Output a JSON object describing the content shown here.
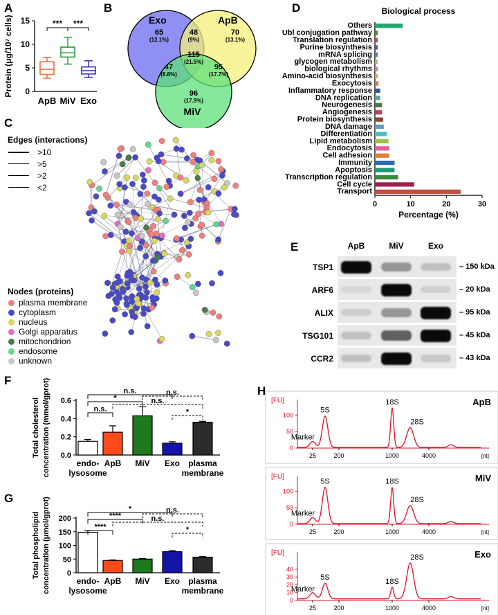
{
  "panel_labels": {
    "a": "A",
    "b": "B",
    "c": "C",
    "d": "D",
    "e": "E",
    "f": "F",
    "g": "G",
    "h": "H"
  },
  "colors": {
    "apb": "#f26b3a",
    "miv": "#2a9d3a",
    "exo": "#2f2fc0",
    "venn_exo": "#6b6bf0",
    "venn_apb": "#f6f07a",
    "venn_miv": "#5ee07a",
    "trace": "#e0102a",
    "bar_miv": "#1f7a1f",
    "bar_exo": "#1414a8",
    "bar_pm": "#2b2b2b",
    "bar_apb": "#ff4a1a"
  },
  "chart_data": [
    {
      "id": "A",
      "type": "box",
      "ylabel": "Protein (μg/10⁷ cells)",
      "ylim": [
        0,
        15
      ],
      "yticks": [
        "0",
        "5",
        "10",
        "15"
      ],
      "categories": [
        "ApB",
        "MiV",
        "Exo"
      ],
      "boxes": [
        {
          "name": "ApB",
          "min": 2.8,
          "q1": 3.6,
          "median": 4.7,
          "q3": 6.3,
          "max": 7.2
        },
        {
          "name": "MiV",
          "min": 5.8,
          "q1": 7.3,
          "median": 8.2,
          "q3": 9.4,
          "max": 11.5
        },
        {
          "name": "Exo",
          "min": 3.0,
          "q1": 3.7,
          "median": 4.4,
          "q3": 5.2,
          "max": 6.5
        }
      ],
      "significance": [
        {
          "pair": [
            "ApB",
            "MiV"
          ],
          "label": "***"
        },
        {
          "pair": [
            "MiV",
            "Exo"
          ],
          "label": "***"
        }
      ]
    },
    {
      "id": "B",
      "type": "venn",
      "sets": [
        "Exo",
        "ApB",
        "MiV"
      ],
      "regions": [
        {
          "sets": [
            "Exo"
          ],
          "count": "65",
          "pct": "(12.1%)"
        },
        {
          "sets": [
            "ApB"
          ],
          "count": "70",
          "pct": "(13.1%)"
        },
        {
          "sets": [
            "Exo",
            "ApB"
          ],
          "count": "48",
          "pct": "(9%)"
        },
        {
          "sets": [
            "Exo",
            "ApB",
            "MiV"
          ],
          "count": "115",
          "pct": "(21.5%)"
        },
        {
          "sets": [
            "Exo",
            "MiV"
          ],
          "count": "47",
          "pct": "(8.8%)"
        },
        {
          "sets": [
            "ApB",
            "MiV"
          ],
          "count": "95",
          "pct": "(17.7%)"
        },
        {
          "sets": [
            "MiV"
          ],
          "count": "96",
          "pct": "(17.9%)"
        }
      ]
    },
    {
      "id": "D",
      "type": "bar",
      "orientation": "horizontal",
      "title": "Biological process",
      "xlabel": "Percentage (%)",
      "xlim": [
        0,
        30
      ],
      "xticks": [
        "0",
        "10",
        "20",
        "30"
      ],
      "categories": [
        "Others",
        "Ubl conjugation pathway",
        "Translation regulation",
        "Purine biosynthesis",
        "mRNA splicing",
        "glycogen metabolism",
        "biological rhythms",
        "Amino-acid biosynthesis",
        "Exocytosis",
        "Inflammatory response",
        "DNA replication",
        "Neurogenesis",
        "Angiogenesis",
        "Protein biosynthesis",
        "DNA damage",
        "Differentiation",
        "Lipid metabolism",
        "Endocytosis",
        "Cell adhesion",
        "Immunity",
        "Apoptosis",
        "Transcription regulation",
        "Cell cycle",
        "Transport"
      ],
      "values": [
        7.8,
        0.8,
        0.8,
        0.8,
        0.8,
        0.8,
        0.8,
        0.8,
        1.0,
        1.5,
        1.5,
        2.0,
        2.0,
        2.3,
        2.5,
        3.3,
        3.8,
        4.0,
        4.0,
        5.5,
        5.5,
        6.5,
        11.0,
        24.0
      ],
      "bar_colors": [
        "#1ea870",
        "#4a8a2a",
        "#c0405a",
        "#6a4aa0",
        "#3a8ac8",
        "#a0c060",
        "#d07aa0",
        "#e8a050",
        "#e87050",
        "#2a5aa0",
        "#5aa0a0",
        "#4a7a3a",
        "#c04060",
        "#8a4a2a",
        "#6a9ac0",
        "#4ac0c0",
        "#a0c040",
        "#e060a0",
        "#e08040",
        "#2a6ab0",
        "#1a9a7a",
        "#3a8a3a",
        "#a02050",
        "#c05040"
      ]
    },
    {
      "id": "F",
      "type": "bar",
      "ylabel": "Total cholesterol concentration (mmol/gprot)",
      "ylim": [
        0,
        0.6
      ],
      "yticks": [
        "0.0",
        "0.2",
        "0.4",
        "0.6"
      ],
      "categories": [
        "endo-lysosome",
        "ApB",
        "MiV",
        "Exo",
        "plasma membrane"
      ],
      "category_lines": [
        [
          "endo-",
          "lysosome"
        ],
        [
          "ApB"
        ],
        [
          "MiV"
        ],
        [
          "Exo"
        ],
        [
          "plasma",
          "membrane"
        ]
      ],
      "values": [
        0.15,
        0.25,
        0.43,
        0.13,
        0.36
      ],
      "errors": [
        0.02,
        0.07,
        0.1,
        0.015,
        0.01
      ],
      "significance": [
        {
          "pair": [
            "endo-lysosome",
            "ApB"
          ],
          "label": "n.s.",
          "style": "solid"
        },
        {
          "pair": [
            "endo-lysosome",
            "MiV"
          ],
          "label": "*",
          "style": "solid"
        },
        {
          "pair": [
            "endo-lysosome",
            "Exo"
          ],
          "label": "n.s.",
          "style": "solid"
        },
        {
          "pair": [
            "ApB",
            "plasma membrane"
          ],
          "label": "n.s.",
          "style": "dashed"
        },
        {
          "pair": [
            "MiV",
            "plasma membrane"
          ],
          "label": "n.s.",
          "style": "dashed"
        },
        {
          "pair": [
            "Exo",
            "plasma membrane"
          ],
          "label": "*",
          "style": "dashed"
        }
      ]
    },
    {
      "id": "G",
      "type": "bar",
      "ylabel": "Total phospholipid concentration (μmol/gprot)",
      "ylim": [
        0,
        200
      ],
      "yticks": [
        "0",
        "50",
        "100",
        "150",
        "200"
      ],
      "categories": [
        "endo-lysosome",
        "ApB",
        "MiV",
        "Exo",
        "plasma membrane"
      ],
      "category_lines": [
        [
          "endo-",
          "lysosome"
        ],
        [
          "ApB"
        ],
        [
          "MiV"
        ],
        [
          "Exo"
        ],
        [
          "plasma",
          "membrane"
        ]
      ],
      "values": [
        148,
        45,
        50,
        77,
        57
      ],
      "errors": [
        6,
        2,
        2,
        4,
        2
      ],
      "significance": [
        {
          "pair": [
            "endo-lysosome",
            "ApB"
          ],
          "label": "****",
          "style": "solid"
        },
        {
          "pair": [
            "endo-lysosome",
            "MiV"
          ],
          "label": "****",
          "style": "solid"
        },
        {
          "pair": [
            "endo-lysosome",
            "Exo"
          ],
          "label": "*",
          "style": "solid"
        },
        {
          "pair": [
            "ApB",
            "plasma membrane"
          ],
          "label": "n.s.",
          "style": "dashed"
        },
        {
          "pair": [
            "MiV",
            "plasma membrane"
          ],
          "label": "n.s.",
          "style": "dashed"
        },
        {
          "pair": [
            "Exo",
            "plasma membrane"
          ],
          "label": "*",
          "style": "dashed"
        }
      ]
    },
    {
      "id": "H",
      "type": "line",
      "yunit": "[FU]",
      "xunit": "[nt]",
      "xticks": [
        "25",
        "200",
        "1000",
        "4000"
      ],
      "traces": [
        {
          "name": "ApB",
          "yticks": [
            "0",
            "50",
            "100"
          ],
          "ymax": 130,
          "peaks": [
            {
              "label": "Marker",
              "pos": 22,
              "height": 18
            },
            {
              "label": "5S",
              "pos": 40,
              "height": 95
            },
            {
              "label": "18S",
              "pos": 137,
              "height": 120
            },
            {
              "label": "28S",
              "pos": 163,
              "height": 60
            },
            {
              "label": "",
              "pos": 222,
              "height": 8
            }
          ]
        },
        {
          "name": "MiV",
          "yticks": [
            "0",
            "50",
            "100"
          ],
          "ymax": 130,
          "peaks": [
            {
              "label": "Marker",
              "pos": 22,
              "height": 18
            },
            {
              "label": "5S",
              "pos": 40,
              "height": 110
            },
            {
              "label": "18S",
              "pos": 137,
              "height": 110
            },
            {
              "label": "28S",
              "pos": 163,
              "height": 55
            },
            {
              "label": "",
              "pos": 222,
              "height": 6
            }
          ]
        },
        {
          "name": "Exo",
          "yticks": [
            "0",
            "10",
            "20",
            "30",
            "40"
          ],
          "ymax": 55,
          "peaks": [
            {
              "label": "Marker",
              "pos": 22,
              "height": 8
            },
            {
              "label": "5S",
              "pos": 40,
              "height": 20
            },
            {
              "label": "18S",
              "pos": 137,
              "height": 15
            },
            {
              "label": "28S",
              "pos": 163,
              "height": 46
            },
            {
              "label": "",
              "pos": 222,
              "height": 3
            }
          ]
        }
      ]
    }
  ],
  "panel_c": {
    "edges_title": "Edges (interactions)",
    "edge_items": [
      {
        "label": ">10"
      },
      {
        "label": ">5"
      },
      {
        "label": ">2"
      },
      {
        "label": "<2"
      }
    ],
    "nodes_title": "Nodes (proteins)",
    "node_items": [
      {
        "label": "plasma membrane",
        "color": "#f08080"
      },
      {
        "label": "cytoplasm",
        "color": "#4a4ac8"
      },
      {
        "label": "nucleus",
        "color": "#d8d860"
      },
      {
        "label": "Golgi apparatus",
        "color": "#e070c0"
      },
      {
        "label": "mitochondrion",
        "color": "#4a7a4a"
      },
      {
        "label": "endosome",
        "color": "#60d890"
      },
      {
        "label": "unknown",
        "color": "#c8c8c8"
      }
    ]
  },
  "panel_e": {
    "columns": [
      "ApB",
      "MiV",
      "Exo"
    ],
    "rows": [
      {
        "protein": "TSP1",
        "size": "150 kDa",
        "intensity": [
          1.0,
          0.35,
          0.15
        ]
      },
      {
        "protein": "ARF6",
        "size": "20 kDa",
        "intensity": [
          0.05,
          1.0,
          0.08
        ]
      },
      {
        "protein": "ALIX",
        "size": "95 kDa",
        "intensity": [
          0.1,
          0.35,
          1.0
        ]
      },
      {
        "protein": "TSG101",
        "size": "45 kDa",
        "intensity": [
          0.15,
          0.6,
          1.0
        ]
      },
      {
        "protein": "CCR2",
        "size": "43 kDa",
        "intensity": [
          0.15,
          1.0,
          0.12
        ]
      }
    ]
  }
}
